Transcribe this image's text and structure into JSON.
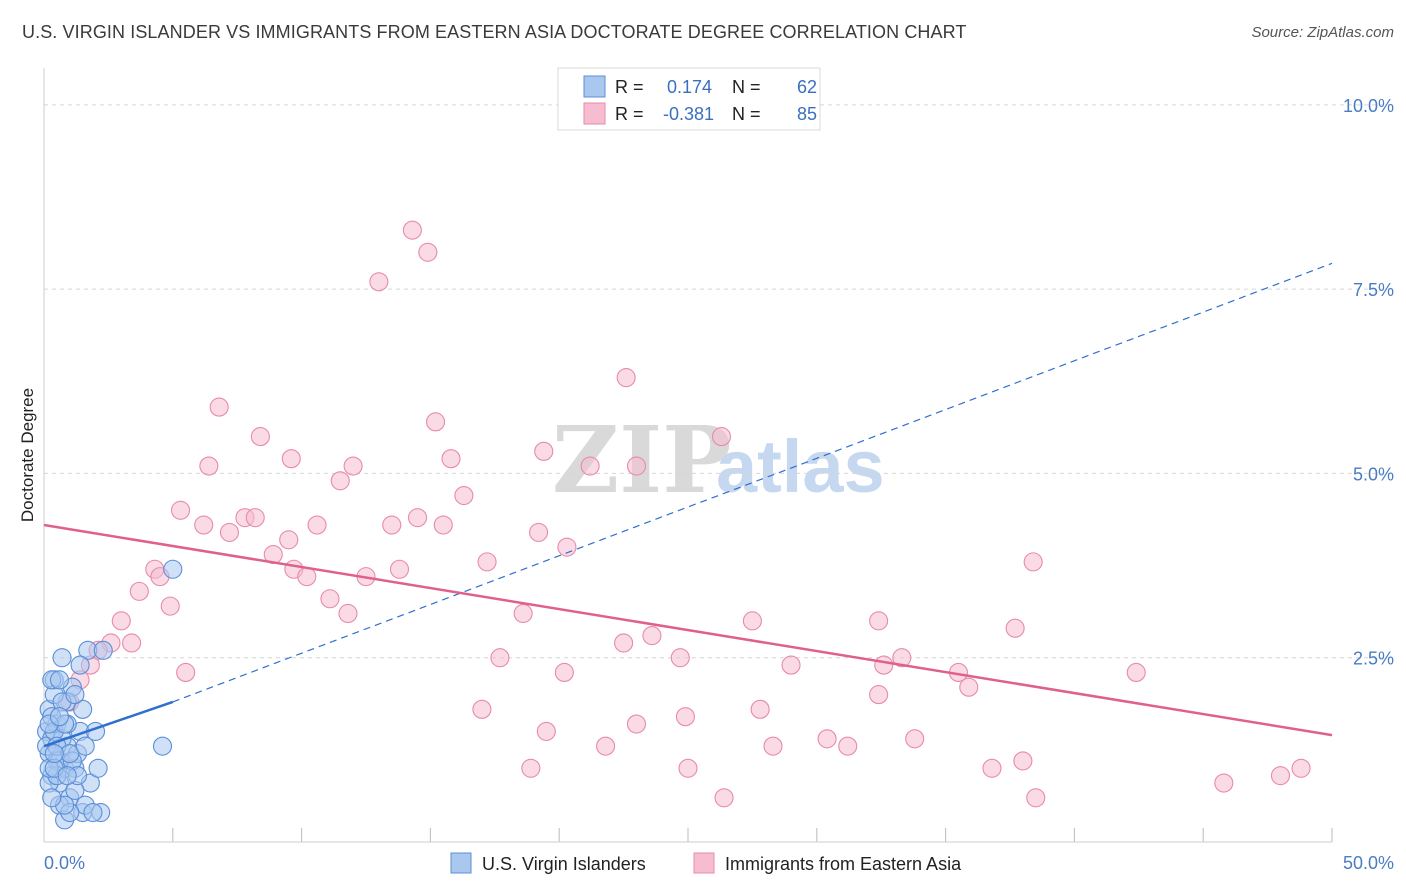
{
  "title": "U.S. VIRGIN ISLANDER VS IMMIGRANTS FROM EASTERN ASIA DOCTORATE DEGREE CORRELATION CHART",
  "source": "Source: ZipAtlas.com",
  "watermark": {
    "zip": "ZIP",
    "atlas": "atlas"
  },
  "colors": {
    "blue_fill": "#a9c8f0",
    "blue_stroke": "#5b8fd6",
    "blue_line": "#2f6fcf",
    "pink_fill": "#f6bcd0",
    "pink_stroke": "#e88aab",
    "pink_line": "#e0608c",
    "grid": "#d6d6d6",
    "axis_text": "#4a7cc4"
  },
  "legend": {
    "rows": [
      {
        "r_label": "R =",
        "r_value": "0.174",
        "n_label": "N =",
        "n_value": "62"
      },
      {
        "r_label": "R =",
        "r_value": "-0.381",
        "n_label": "N =",
        "n_value": "85"
      }
    ]
  },
  "bottom_legend": {
    "blue": "U.S. Virgin Islanders",
    "pink": "Immigrants from Eastern Asia"
  },
  "chart_data": {
    "type": "scatter",
    "title": "U.S. VIRGIN ISLANDER VS IMMIGRANTS FROM EASTERN ASIA DOCTORATE DEGREE CORRELATION CHART",
    "xlabel": "",
    "ylabel": "Doctorate Degree",
    "xlim": [
      0,
      50
    ],
    "ylim": [
      0,
      10.5
    ],
    "x_tick_labels": [
      "0.0%",
      "50.0%"
    ],
    "y_tick_labels": [
      "2.5%",
      "5.0%",
      "7.5%",
      "10.0%"
    ],
    "y_ticks": [
      2.5,
      5.0,
      7.5,
      10.0
    ],
    "grid": true,
    "series": [
      {
        "name": "U.S. Virgin Islanders",
        "color": "blue",
        "trend": {
          "x": [
            0,
            5
          ],
          "y": [
            1.3,
            1.9
          ],
          "solid_until": 5,
          "dashed_to": [
            50,
            7.85
          ]
        },
        "points": [
          [
            0.1,
            1.5
          ],
          [
            0.2,
            1.2
          ],
          [
            0.3,
            0.9
          ],
          [
            0.2,
            1.8
          ],
          [
            0.4,
            2.2
          ],
          [
            0.5,
            1.1
          ],
          [
            0.6,
            0.8
          ],
          [
            0.3,
            1.4
          ],
          [
            0.8,
            1.0
          ],
          [
            0.5,
            1.6
          ],
          [
            0.7,
            2.5
          ],
          [
            0.9,
            1.3
          ],
          [
            1.0,
            0.6
          ],
          [
            1.2,
            1.0
          ],
          [
            1.4,
            1.5
          ],
          [
            1.1,
            2.1
          ],
          [
            0.6,
            0.5
          ],
          [
            0.8,
            0.3
          ],
          [
            1.5,
            0.4
          ],
          [
            1.3,
            1.2
          ],
          [
            1.6,
            0.5
          ],
          [
            1.8,
            0.8
          ],
          [
            2.0,
            1.5
          ],
          [
            2.1,
            1.0
          ],
          [
            1.7,
            2.6
          ],
          [
            0.9,
            1.9
          ],
          [
            0.4,
            2.0
          ],
          [
            0.2,
            0.8
          ],
          [
            0.1,
            1.3
          ],
          [
            0.3,
            1.7
          ],
          [
            0.6,
            1.1
          ],
          [
            0.7,
            1.4
          ],
          [
            1.0,
            0.4
          ],
          [
            1.2,
            0.7
          ],
          [
            0.5,
            0.9
          ],
          [
            2.3,
            2.6
          ],
          [
            2.2,
            0.4
          ],
          [
            5.0,
            3.7
          ],
          [
            4.6,
            1.3
          ],
          [
            1.4,
            2.4
          ],
          [
            0.3,
            2.2
          ],
          [
            0.4,
            1.5
          ],
          [
            0.9,
            1.6
          ],
          [
            1.1,
            1.1
          ],
          [
            0.2,
            1.0
          ],
          [
            0.5,
            1.3
          ],
          [
            0.8,
            0.5
          ],
          [
            1.3,
            0.9
          ],
          [
            0.6,
            2.2
          ],
          [
            0.7,
            1.9
          ],
          [
            0.3,
            0.6
          ],
          [
            1.9,
            0.4
          ],
          [
            0.4,
            1.0
          ],
          [
            1.0,
            1.2
          ],
          [
            1.5,
            1.8
          ],
          [
            0.8,
            1.6
          ],
          [
            0.2,
            1.6
          ],
          [
            0.6,
            1.7
          ],
          [
            1.2,
            2.0
          ],
          [
            0.9,
            0.9
          ],
          [
            0.4,
            1.2
          ],
          [
            1.6,
            1.3
          ]
        ]
      },
      {
        "name": "Immigrants from Eastern Asia",
        "color": "pink",
        "trend": {
          "x": [
            0,
            50
          ],
          "y": [
            4.3,
            1.45
          ]
        },
        "points": [
          [
            14.3,
            8.3
          ],
          [
            14.9,
            8.0
          ],
          [
            13.0,
            7.6
          ],
          [
            22.6,
            6.3
          ],
          [
            6.8,
            5.9
          ],
          [
            8.4,
            5.5
          ],
          [
            15.2,
            5.7
          ],
          [
            26.3,
            5.5
          ],
          [
            9.6,
            5.2
          ],
          [
            15.8,
            5.2
          ],
          [
            19.4,
            5.3
          ],
          [
            12.0,
            5.1
          ],
          [
            21.2,
            5.1
          ],
          [
            23.0,
            5.1
          ],
          [
            6.4,
            5.1
          ],
          [
            11.5,
            4.9
          ],
          [
            16.3,
            4.7
          ],
          [
            5.3,
            4.5
          ],
          [
            13.5,
            4.3
          ],
          [
            14.5,
            4.4
          ],
          [
            7.8,
            4.4
          ],
          [
            8.2,
            4.4
          ],
          [
            6.2,
            4.3
          ],
          [
            10.6,
            4.3
          ],
          [
            15.5,
            4.3
          ],
          [
            7.2,
            4.2
          ],
          [
            9.5,
            4.1
          ],
          [
            19.2,
            4.2
          ],
          [
            20.3,
            4.0
          ],
          [
            8.9,
            3.9
          ],
          [
            17.2,
            3.8
          ],
          [
            13.8,
            3.7
          ],
          [
            9.7,
            3.7
          ],
          [
            12.5,
            3.6
          ],
          [
            10.2,
            3.6
          ],
          [
            4.3,
            3.7
          ],
          [
            4.5,
            3.6
          ],
          [
            3.7,
            3.4
          ],
          [
            4.9,
            3.2
          ],
          [
            11.1,
            3.3
          ],
          [
            11.8,
            3.1
          ],
          [
            18.6,
            3.1
          ],
          [
            3.0,
            3.0
          ],
          [
            27.5,
            3.0
          ],
          [
            32.4,
            3.0
          ],
          [
            37.7,
            2.9
          ],
          [
            2.6,
            2.7
          ],
          [
            3.4,
            2.7
          ],
          [
            23.6,
            2.8
          ],
          [
            22.5,
            2.7
          ],
          [
            2.1,
            2.6
          ],
          [
            33.3,
            2.5
          ],
          [
            17.7,
            2.5
          ],
          [
            24.7,
            2.5
          ],
          [
            29.0,
            2.4
          ],
          [
            1.8,
            2.4
          ],
          [
            20.2,
            2.3
          ],
          [
            32.6,
            2.4
          ],
          [
            35.5,
            2.3
          ],
          [
            42.4,
            2.3
          ],
          [
            5.5,
            2.3
          ],
          [
            1.4,
            2.2
          ],
          [
            35.9,
            2.1
          ],
          [
            32.4,
            2.0
          ],
          [
            17.0,
            1.8
          ],
          [
            27.8,
            1.8
          ],
          [
            1.0,
            1.9
          ],
          [
            24.9,
            1.7
          ],
          [
            23.0,
            1.6
          ],
          [
            19.5,
            1.5
          ],
          [
            30.4,
            1.4
          ],
          [
            28.3,
            1.3
          ],
          [
            21.8,
            1.3
          ],
          [
            31.2,
            1.3
          ],
          [
            36.8,
            1.0
          ],
          [
            18.9,
            1.0
          ],
          [
            25.0,
            1.0
          ],
          [
            26.4,
            0.6
          ],
          [
            33.8,
            1.4
          ],
          [
            38.5,
            0.6
          ],
          [
            38.0,
            1.1
          ],
          [
            38.4,
            3.8
          ],
          [
            45.8,
            0.8
          ],
          [
            48.8,
            1.0
          ],
          [
            48.0,
            0.9
          ]
        ]
      }
    ]
  }
}
